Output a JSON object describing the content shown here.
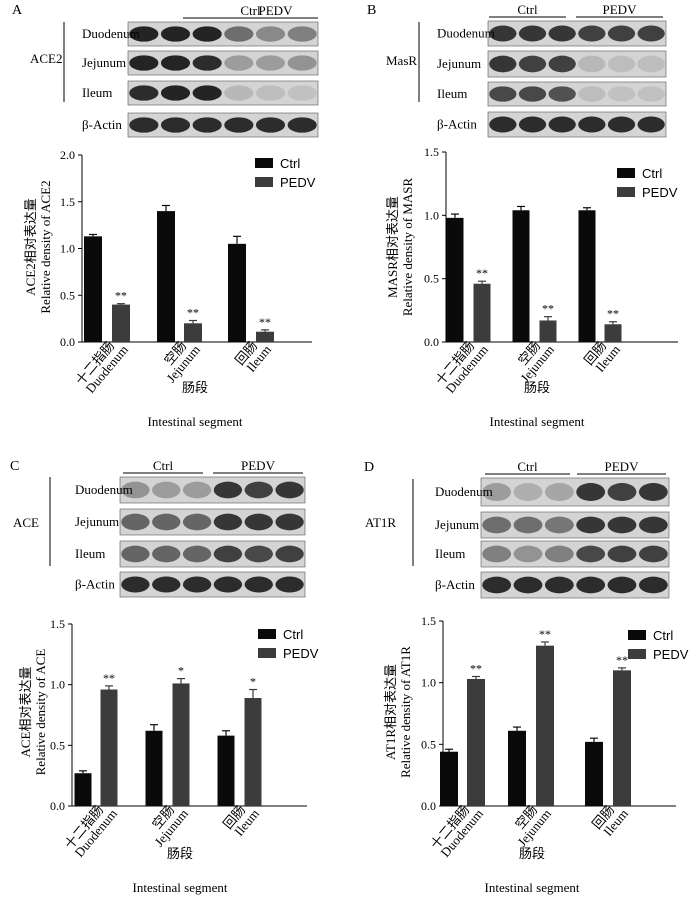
{
  "panels": [
    {
      "letter": "A",
      "protein": "ACE2",
      "blot": {
        "group_labels": [
          "Ctrl",
          "PEDV"
        ],
        "tissues": [
          "Duodenum",
          "Jejunum",
          "Ileum"
        ],
        "actin_label": "β-Actin",
        "intensity": [
          [
            0.95,
            0.95,
            0.95,
            0.55,
            0.4,
            0.45
          ],
          [
            0.95,
            0.95,
            0.9,
            0.3,
            0.3,
            0.35
          ],
          [
            0.9,
            0.95,
            0.95,
            0.15,
            0.12,
            0.1
          ]
        ]
      },
      "chart_data": {
        "type": "bar",
        "categories": [
          "十二指肠\nDuodenum",
          "空肠\nJejunum",
          "回肠\nIleum"
        ],
        "series": [
          {
            "name": "Ctrl",
            "values": [
              1.13,
              1.4,
              1.05
            ],
            "errors": [
              0.02,
              0.06,
              0.08
            ],
            "sig": [
              "",
              "",
              ""
            ]
          },
          {
            "name": "PEDV",
            "values": [
              0.4,
              0.2,
              0.11
            ],
            "errors": [
              0.01,
              0.03,
              0.02
            ],
            "sig": [
              "**",
              "**",
              "**"
            ]
          }
        ],
        "ylabel_cn": "ACE2相对表达量",
        "ylabel_en": "Relative density of ACE2",
        "xlabel_cn": "肠段",
        "xlabel_en": "Intestinal segment",
        "ylim": [
          0,
          2.0
        ],
        "yticks": [
          "0.0",
          "0.5",
          "1.0",
          "1.5",
          "2.0"
        ]
      }
    },
    {
      "letter": "B",
      "protein": "MasR",
      "blot": {
        "group_labels": [
          "Ctrl",
          "PEDV"
        ],
        "tissues": [
          "Duodenum",
          "Jejunum",
          "Ileum"
        ],
        "actin_label": "β-Actin",
        "intensity": [
          [
            0.85,
            0.85,
            0.85,
            0.8,
            0.8,
            0.8
          ],
          [
            0.85,
            0.8,
            0.8,
            0.15,
            0.12,
            0.12
          ],
          [
            0.75,
            0.75,
            0.7,
            0.12,
            0.1,
            0.1
          ]
        ]
      },
      "chart_data": {
        "type": "bar",
        "categories": [
          "十二指肠\nDuodenum",
          "空肠\nJejunum",
          "回肠\nIleum"
        ],
        "series": [
          {
            "name": "Ctrl",
            "values": [
              0.98,
              1.04,
              1.04
            ],
            "errors": [
              0.03,
              0.03,
              0.02
            ],
            "sig": [
              "",
              "",
              ""
            ]
          },
          {
            "name": "PEDV",
            "values": [
              0.46,
              0.17,
              0.14
            ],
            "errors": [
              0.02,
              0.03,
              0.02
            ],
            "sig": [
              "**",
              "**",
              "**"
            ]
          }
        ],
        "ylabel_cn": "MASR相对表达量",
        "ylabel_en": "Relative density of MASR",
        "xlabel_cn": "肠段",
        "xlabel_en": "Intestinal segment",
        "ylim": [
          0,
          1.5
        ],
        "yticks": [
          "0.0",
          "0.5",
          "1.0",
          "1.5"
        ]
      }
    },
    {
      "letter": "C",
      "protein": "ACE",
      "blot": {
        "group_labels": [
          "Ctrl",
          "PEDV"
        ],
        "tissues": [
          "Duodenum",
          "Jejunum",
          "Ileum"
        ],
        "actin_label": "β-Actin",
        "intensity": [
          [
            0.35,
            0.3,
            0.3,
            0.85,
            0.8,
            0.85
          ],
          [
            0.6,
            0.6,
            0.6,
            0.85,
            0.85,
            0.85
          ],
          [
            0.6,
            0.6,
            0.6,
            0.8,
            0.75,
            0.8
          ]
        ]
      },
      "chart_data": {
        "type": "bar",
        "categories": [
          "十二指肠\nDuodenum",
          "空肠\nJejunum",
          "回肠\nIleum"
        ],
        "series": [
          {
            "name": "Ctrl",
            "values": [
              0.27,
              0.62,
              0.58
            ],
            "errors": [
              0.02,
              0.05,
              0.04
            ],
            "sig": [
              "",
              "",
              ""
            ]
          },
          {
            "name": "PEDV",
            "values": [
              0.96,
              1.01,
              0.89
            ],
            "errors": [
              0.03,
              0.04,
              0.07
            ],
            "sig": [
              "**",
              "*",
              "*"
            ]
          }
        ],
        "ylabel_cn": "ACE相对表达量",
        "ylabel_en": "Relative density of ACE",
        "xlabel_cn": "肠段",
        "xlabel_en": "Intestinal segment",
        "ylim": [
          0,
          1.5
        ],
        "yticks": [
          "0.0",
          "0.5",
          "1.0",
          "1.5"
        ]
      }
    },
    {
      "letter": "D",
      "protein": "AT1R",
      "blot": {
        "group_labels": [
          "Ctrl",
          "PEDV"
        ],
        "tissues": [
          "Duodenum",
          "Jejunum",
          "Ileum"
        ],
        "actin_label": "β-Actin",
        "intensity": [
          [
            0.3,
            0.2,
            0.25,
            0.85,
            0.8,
            0.85
          ],
          [
            0.55,
            0.55,
            0.5,
            0.85,
            0.85,
            0.85
          ],
          [
            0.45,
            0.35,
            0.45,
            0.75,
            0.8,
            0.8
          ]
        ]
      },
      "chart_data": {
        "type": "bar",
        "categories": [
          "十二指肠\nDuodenum",
          "空肠\nJejunum",
          "回肠\nIleum"
        ],
        "series": [
          {
            "name": "Ctrl",
            "values": [
              0.44,
              0.61,
              0.52
            ],
            "errors": [
              0.02,
              0.03,
              0.03
            ],
            "sig": [
              "",
              "",
              ""
            ]
          },
          {
            "name": "PEDV",
            "values": [
              1.03,
              1.3,
              1.1
            ],
            "errors": [
              0.02,
              0.03,
              0.02
            ],
            "sig": [
              "**",
              "**",
              "**"
            ]
          }
        ],
        "ylabel_cn": "AT1R相对表达量",
        "ylabel_en": "Relative density of AT1R",
        "xlabel_cn": "肠段",
        "xlabel_en": "Intestinal segment",
        "ylim": [
          0,
          1.5
        ],
        "yticks": [
          "0.0",
          "0.5",
          "1.0",
          "1.5"
        ]
      }
    }
  ],
  "colors": {
    "ctrl": "#0a0a0a",
    "pedv": "#3c3c3c",
    "blot_bg": "#d4d4d4",
    "band": "#1a1a1a"
  }
}
